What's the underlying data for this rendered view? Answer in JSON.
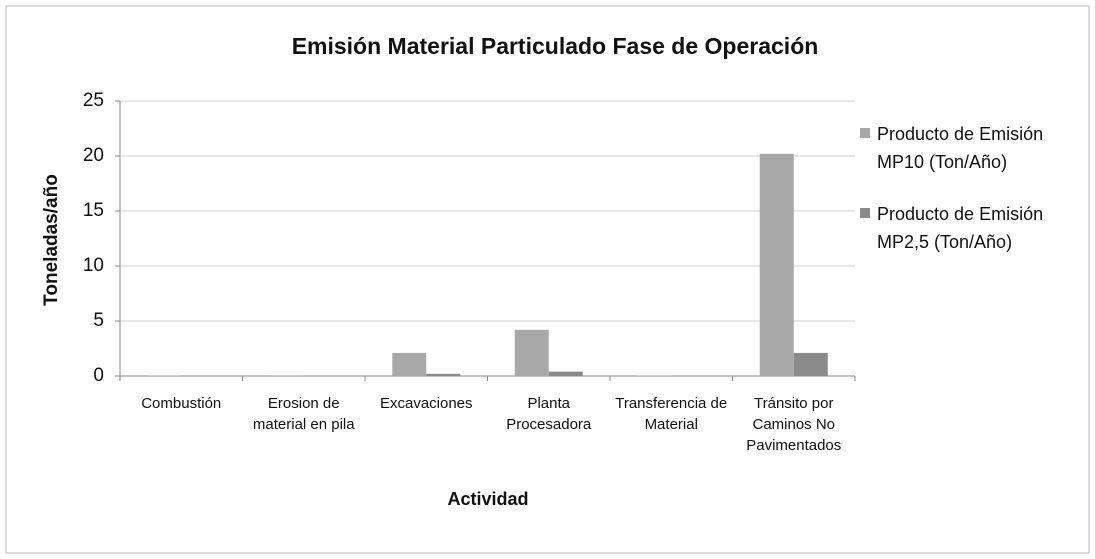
{
  "chart_data": {
    "type": "bar",
    "title": "Emisión Material Particulado Fase de Operación",
    "x_label": "Actividad",
    "y_label": "Toneladas/año",
    "categories": [
      "Combustión",
      "Erosion de material en pila",
      "Excavaciones",
      "Planta Procesadora",
      "Transferencia de Material",
      "Tránsito por Caminos No Pavimentados"
    ],
    "series": [
      {
        "name": "Producto de Emisión MP10 (Ton/Año)",
        "color": "#a8a8a8",
        "values": [
          0.05,
          0.02,
          2.1,
          4.2,
          0.03,
          20.2
        ]
      },
      {
        "name": "Producto de Emisión MP2,5 (Ton/Año)",
        "color": "#8a8a8a",
        "values": [
          0.03,
          0.01,
          0.2,
          0.4,
          0.01,
          2.1
        ]
      }
    ],
    "ylim": [
      0,
      25
    ],
    "yticks": [
      0,
      5,
      10,
      15,
      20,
      25
    ],
    "grid": true,
    "legend": "right"
  }
}
